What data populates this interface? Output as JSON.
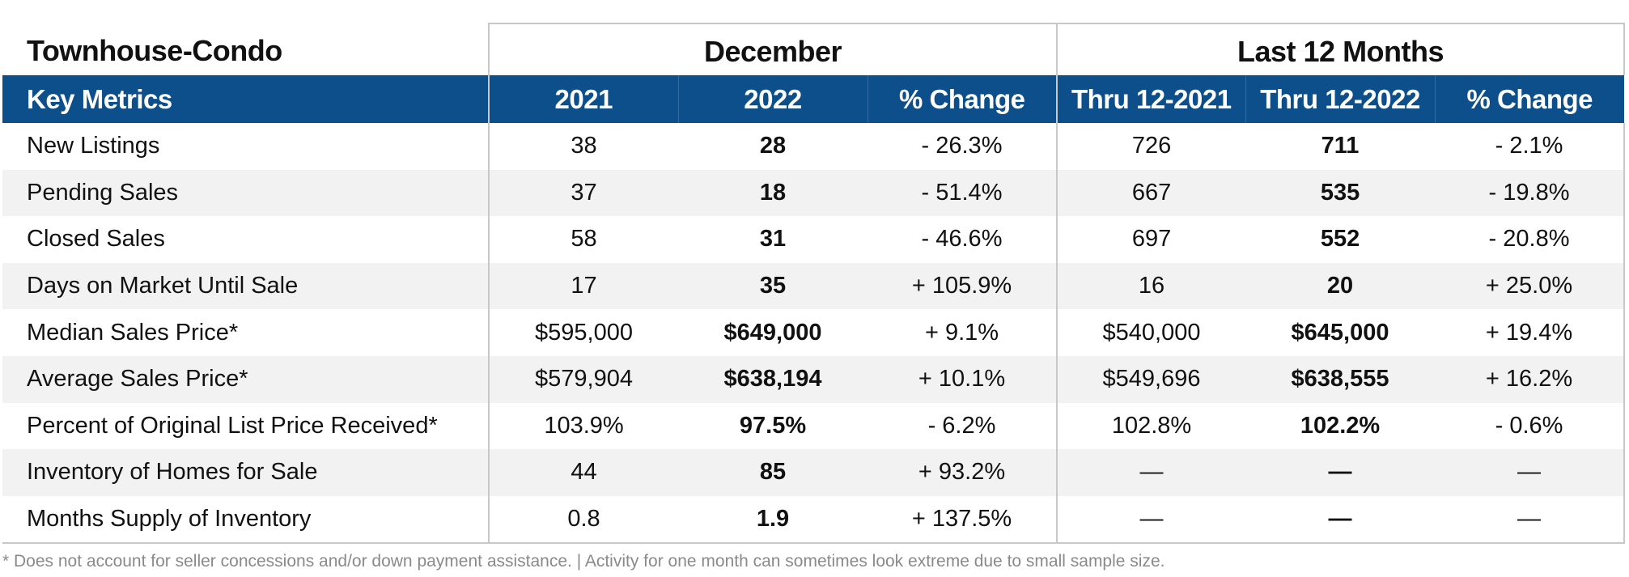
{
  "table": {
    "title": "Townhouse-Condo",
    "group_headers": [
      "December",
      "Last 12 Months"
    ],
    "column_headers": [
      "Key Metrics",
      "2021",
      "2022",
      "% Change",
      "Thru 12-2021",
      "Thru 12-2022",
      "% Change"
    ],
    "rows": [
      {
        "metric": "New Listings",
        "dec_2021": "38",
        "dec_2022": "28",
        "dec_change": "- 26.3%",
        "ytd_2021": "726",
        "ytd_2022": "711",
        "ytd_change": "- 2.1%"
      },
      {
        "metric": "Pending Sales",
        "dec_2021": "37",
        "dec_2022": "18",
        "dec_change": "- 51.4%",
        "ytd_2021": "667",
        "ytd_2022": "535",
        "ytd_change": "- 19.8%"
      },
      {
        "metric": "Closed Sales",
        "dec_2021": "58",
        "dec_2022": "31",
        "dec_change": "- 46.6%",
        "ytd_2021": "697",
        "ytd_2022": "552",
        "ytd_change": "- 20.8%"
      },
      {
        "metric": "Days on Market Until Sale",
        "dec_2021": "17",
        "dec_2022": "35",
        "dec_change": "+ 105.9%",
        "ytd_2021": "16",
        "ytd_2022": "20",
        "ytd_change": "+ 25.0%"
      },
      {
        "metric": "Median Sales Price*",
        "dec_2021": "$595,000",
        "dec_2022": "$649,000",
        "dec_change": "+ 9.1%",
        "ytd_2021": "$540,000",
        "ytd_2022": "$645,000",
        "ytd_change": "+ 19.4%"
      },
      {
        "metric": "Average Sales Price*",
        "dec_2021": "$579,904",
        "dec_2022": "$638,194",
        "dec_change": "+ 10.1%",
        "ytd_2021": "$549,696",
        "ytd_2022": "$638,555",
        "ytd_change": "+ 16.2%"
      },
      {
        "metric": "Percent of Original List Price Received*",
        "dec_2021": "103.9%",
        "dec_2022": "97.5%",
        "dec_change": "- 6.2%",
        "ytd_2021": "102.8%",
        "ytd_2022": "102.2%",
        "ytd_change": "- 0.6%"
      },
      {
        "metric": "Inventory of Homes for Sale",
        "dec_2021": "44",
        "dec_2022": "85",
        "dec_change": "+ 93.2%",
        "ytd_2021": "—",
        "ytd_2022": "—",
        "ytd_change": "—"
      },
      {
        "metric": "Months Supply of Inventory",
        "dec_2021": "0.8",
        "dec_2022": "1.9",
        "dec_change": "+ 137.5%",
        "ytd_2021": "—",
        "ytd_2022": "—",
        "ytd_change": "—"
      }
    ]
  },
  "footnote": "* Does not account for seller concessions and/or down payment assistance. | Activity for one month can sometimes look extreme due to small sample size.",
  "colors": {
    "header_band": "#0d4f8b",
    "row_stripe": "#f2f2f2",
    "rule": "#c8c8c8",
    "footnote_text": "#8a8a8a"
  }
}
